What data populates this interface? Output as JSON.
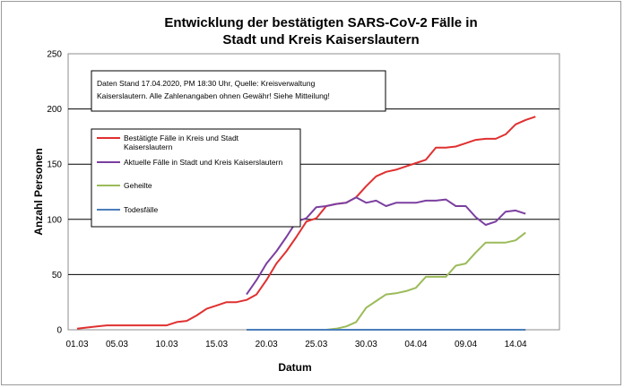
{
  "chart_data": {
    "type": "line",
    "title_line1": "Entwicklung der bestätigten SARS-CoV-2 Fälle in",
    "title_line2": "Stadt und Kreis Kaiserslautern",
    "xlabel": "Datum",
    "ylabel": "Anzahl Personen",
    "ylim": [
      0,
      250
    ],
    "yticks": [
      "0",
      "50",
      "100",
      "150",
      "200",
      "250"
    ],
    "xticks": [
      "01.03",
      "05.03",
      "10.03",
      "15.03",
      "20.03",
      "25.03",
      "30.03",
      "04.04",
      "09.04",
      "14.04"
    ],
    "grid": "horizontal",
    "note_line1": "Daten Stand 17.04.2020, PM 18:30 Uhr, Quelle: Kreisverwaltung",
    "note_line2": "Kaiserslautern. Alle Zahlenangaben ohnen Gewähr! Siehe Mitteilung!",
    "legend_placement": "upper-left",
    "series": [
      {
        "name_line1": "Bestätigte Fälle in Kreis und Stadt",
        "name_line2": "Kaiserslautern",
        "color": "#e03030",
        "start_day": 1,
        "values": [
          1,
          2,
          3,
          4,
          4,
          4,
          4,
          4,
          4,
          4,
          7,
          8,
          13,
          19,
          22,
          25,
          25,
          27,
          32,
          45,
          60,
          71,
          84,
          98,
          101,
          112,
          114,
          115,
          120,
          130,
          139,
          143,
          145,
          148,
          151,
          154,
          165,
          165,
          166,
          169,
          172,
          173,
          173,
          177,
          186,
          190,
          193
        ]
      },
      {
        "name_line1": "Aktuelle Fälle in Stadt und Kreis Kaiserslautern",
        "name_line2": "",
        "color": "#7b3fa0",
        "start_day": 18,
        "values": [
          32,
          45,
          60,
          71,
          84,
          98,
          101,
          111,
          112,
          114,
          115,
          120,
          115,
          117,
          112,
          115,
          115,
          115,
          117,
          117,
          118,
          112,
          112,
          102,
          95,
          98,
          107,
          108,
          105
        ]
      },
      {
        "name_line1": "Geheilte",
        "name_line2": "",
        "color": "#9bbb59",
        "start_day": 18,
        "values": [
          0,
          0,
          0,
          0,
          0,
          0,
          0,
          0,
          0,
          1,
          3,
          7,
          20,
          26,
          32,
          33,
          35,
          38,
          48,
          48,
          48,
          58,
          60,
          70,
          79,
          79,
          79,
          81,
          88
        ]
      },
      {
        "name_line1": "Todesfälle",
        "name_line2": "",
        "color": "#4a7ebb",
        "start_day": 18,
        "values": [
          0,
          0,
          0,
          0,
          0,
          0,
          0,
          0,
          0,
          0,
          0,
          0,
          0,
          0,
          0,
          0,
          0,
          0,
          0,
          0,
          0,
          0,
          0,
          0,
          0,
          0,
          0,
          0,
          0
        ]
      }
    ]
  }
}
